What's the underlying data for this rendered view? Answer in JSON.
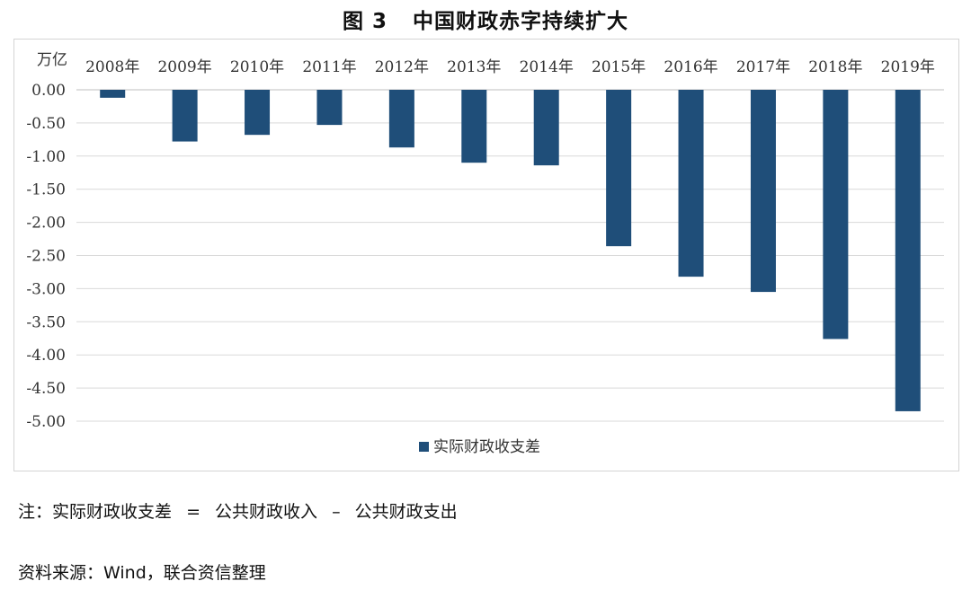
{
  "figure": {
    "number": "图 3",
    "title": "中国财政赤字持续扩大"
  },
  "chart_data": {
    "type": "bar",
    "title": "中国财政赤字持续扩大",
    "ylabel": "万亿",
    "xlabel": "",
    "categories": [
      "2008年",
      "2009年",
      "2010年",
      "2011年",
      "2012年",
      "2013年",
      "2014年",
      "2015年",
      "2016年",
      "2017年",
      "2018年",
      "2019年"
    ],
    "series": [
      {
        "name": "实际财政收支差",
        "color": "#1f4e79",
        "values": [
          -0.12,
          -0.78,
          -0.68,
          -0.53,
          -0.87,
          -1.1,
          -1.14,
          -2.36,
          -2.82,
          -3.05,
          -3.76,
          -4.85
        ]
      }
    ],
    "ylim": [
      -5.0,
      0.0
    ],
    "yticks": [
      "0.00",
      "-0.50",
      "-1.00",
      "-1.50",
      "-2.00",
      "-2.50",
      "-3.00",
      "-3.50",
      "-4.00",
      "-4.50",
      "-5.00"
    ],
    "ytick_values": [
      0,
      -0.5,
      -1.0,
      -1.5,
      -2.0,
      -2.5,
      -3.0,
      -3.5,
      -4.0,
      -4.5,
      -5.0
    ],
    "grid": true,
    "legend_position": "bottom-center",
    "xaxis_position": "top"
  },
  "notes": {
    "formula_prefix": "注：实际财政收支差",
    "eq": "=",
    "revenue": "公共财政收入",
    "minus": "–",
    "expenditure": "公共财政支出"
  },
  "source": "资料来源：Wind，联合资信整理"
}
